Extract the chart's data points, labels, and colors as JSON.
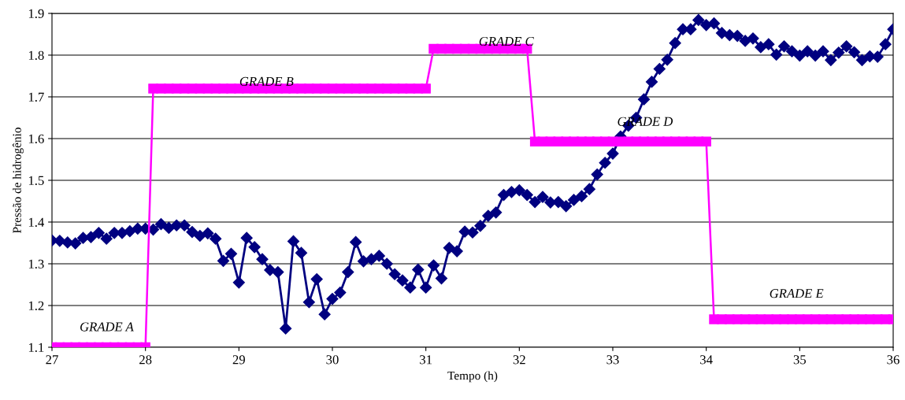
{
  "chart_data": {
    "type": "line",
    "xlabel": "Tempo (h)",
    "ylabel": "Pressão de hidrogênio",
    "xlim": [
      27,
      36
    ],
    "xticks": [
      27,
      28,
      29,
      30,
      31,
      32,
      33,
      34,
      35,
      36
    ],
    "ylim": [
      1.1,
      1.9
    ],
    "yticks": [
      1.1,
      1.2,
      1.3,
      1.4,
      1.5,
      1.6,
      1.7,
      1.8,
      1.9
    ],
    "grid": "y",
    "legend": false,
    "line_style": "solid",
    "x": [
      27.0,
      27.083,
      27.167,
      27.25,
      27.333,
      27.417,
      27.5,
      27.583,
      27.667,
      27.75,
      27.833,
      27.917,
      28.0,
      28.083,
      28.167,
      28.25,
      28.333,
      28.417,
      28.5,
      28.583,
      28.667,
      28.75,
      28.833,
      28.917,
      29.0,
      29.083,
      29.167,
      29.25,
      29.333,
      29.417,
      29.5,
      29.583,
      29.667,
      29.75,
      29.833,
      29.917,
      30.0,
      30.083,
      30.167,
      30.25,
      30.333,
      30.417,
      30.5,
      30.583,
      30.667,
      30.75,
      30.833,
      30.917,
      31.0,
      31.083,
      31.167,
      31.25,
      31.333,
      31.417,
      31.5,
      31.583,
      31.667,
      31.75,
      31.833,
      31.917,
      32.0,
      32.083,
      32.167,
      32.25,
      32.333,
      32.417,
      32.5,
      32.583,
      32.667,
      32.75,
      32.833,
      32.917,
      33.0,
      33.083,
      33.167,
      33.25,
      33.333,
      33.417,
      33.5,
      33.583,
      33.667,
      33.75,
      33.833,
      33.917,
      34.0,
      34.083,
      34.167,
      34.25,
      34.333,
      34.417,
      34.5,
      34.583,
      34.667,
      34.75,
      34.833,
      34.917,
      35.0,
      35.083,
      35.167,
      35.25,
      35.333,
      35.417,
      35.5,
      35.583,
      35.667,
      35.75,
      35.833,
      35.917,
      36.0
    ],
    "series": [
      {
        "color": "#000080",
        "marker": "diamond",
        "values": [
          1.356,
          1.355,
          1.351,
          1.349,
          1.362,
          1.364,
          1.374,
          1.36,
          1.374,
          1.374,
          1.378,
          1.384,
          1.384,
          1.382,
          1.395,
          1.386,
          1.392,
          1.392,
          1.376,
          1.367,
          1.373,
          1.36,
          1.307,
          1.324,
          1.255,
          1.362,
          1.34,
          1.311,
          1.285,
          1.28,
          1.145,
          1.354,
          1.326,
          1.208,
          1.263,
          1.179,
          1.216,
          1.231,
          1.28,
          1.352,
          1.306,
          1.311,
          1.319,
          1.3,
          1.275,
          1.26,
          1.243,
          1.286,
          1.243,
          1.296,
          1.265,
          1.338,
          1.33,
          1.377,
          1.375,
          1.391,
          1.415,
          1.423,
          1.465,
          1.472,
          1.476,
          1.465,
          1.448,
          1.46,
          1.447,
          1.448,
          1.438,
          1.453,
          1.462,
          1.479,
          1.514,
          1.542,
          1.564,
          1.605,
          1.631,
          1.65,
          1.694,
          1.736,
          1.767,
          1.789,
          1.829,
          1.862,
          1.862,
          1.884,
          1.872,
          1.876,
          1.853,
          1.848,
          1.846,
          1.834,
          1.84,
          1.819,
          1.826,
          1.801,
          1.821,
          1.809,
          1.799,
          1.809,
          1.799,
          1.809,
          1.788,
          1.806,
          1.821,
          1.807,
          1.788,
          1.797,
          1.796,
          1.826,
          1.862
        ]
      },
      {
        "color": "#ff00ff",
        "marker": "square",
        "values": [
          1.1,
          1.1,
          1.1,
          1.1,
          1.1,
          1.1,
          1.1,
          1.1,
          1.1,
          1.1,
          1.1,
          1.1,
          1.1,
          1.72,
          1.72,
          1.72,
          1.72,
          1.72,
          1.72,
          1.72,
          1.72,
          1.72,
          1.72,
          1.72,
          1.72,
          1.72,
          1.72,
          1.72,
          1.72,
          1.72,
          1.72,
          1.72,
          1.72,
          1.72,
          1.72,
          1.72,
          1.72,
          1.72,
          1.72,
          1.72,
          1.72,
          1.72,
          1.72,
          1.72,
          1.72,
          1.72,
          1.72,
          1.72,
          1.72,
          1.815,
          1.815,
          1.815,
          1.815,
          1.815,
          1.815,
          1.815,
          1.815,
          1.815,
          1.815,
          1.815,
          1.815,
          1.815,
          1.593,
          1.593,
          1.593,
          1.593,
          1.593,
          1.593,
          1.593,
          1.593,
          1.593,
          1.593,
          1.593,
          1.593,
          1.593,
          1.593,
          1.593,
          1.593,
          1.593,
          1.593,
          1.593,
          1.593,
          1.593,
          1.593,
          1.593,
          1.167,
          1.167,
          1.167,
          1.167,
          1.167,
          1.167,
          1.167,
          1.167,
          1.167,
          1.167,
          1.167,
          1.167,
          1.167,
          1.167,
          1.167,
          1.167,
          1.167,
          1.167,
          1.167,
          1.167,
          1.167,
          1.167,
          1.167,
          1.167
        ]
      }
    ],
    "annotations": [
      "GRADE A",
      "GRADE B",
      "GRADE C",
      "GRADE D",
      "GRADE E"
    ]
  }
}
